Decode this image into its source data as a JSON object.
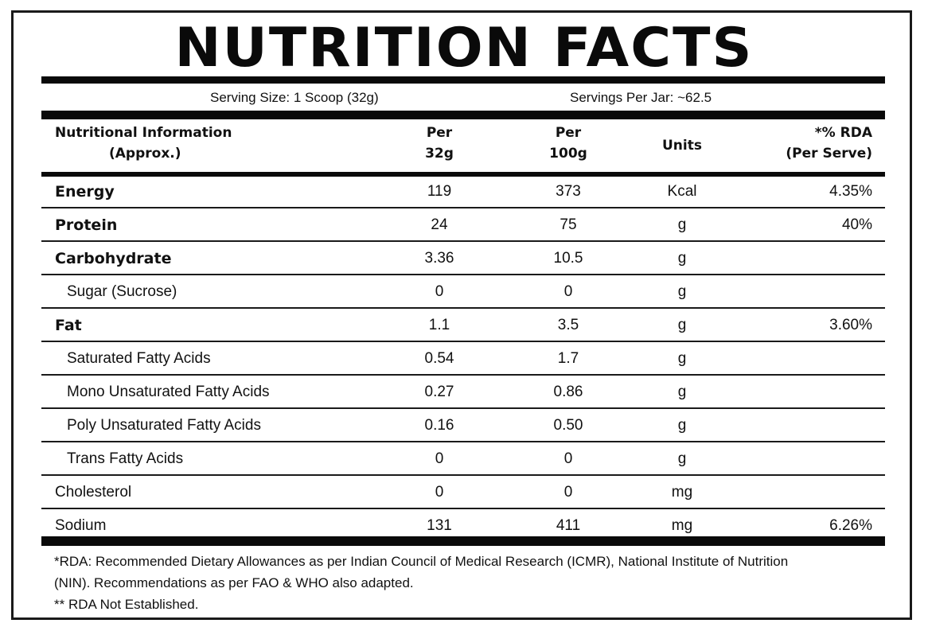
{
  "title": "NUTRITION FACTS",
  "serving": {
    "size": "Serving Size: 1 Scoop (32g)",
    "per_jar": "Servings Per Jar: ~62.5"
  },
  "header": {
    "info_line1": "Nutritional Information",
    "info_line2": "(Approx.)",
    "per32_line1": "Per",
    "per32_line2": "32g",
    "per100_line1": "Per",
    "per100_line2": "100g",
    "units": "Units",
    "rda_line1": "*% RDA",
    "rda_line2": "(Per Serve)"
  },
  "rows": [
    {
      "name": "Energy",
      "v32": "119",
      "v100": "373",
      "unit": "Kcal",
      "rda": "4.35%"
    },
    {
      "name": "Protein",
      "v32": "24",
      "v100": "75",
      "unit": "g",
      "rda": "40%"
    },
    {
      "name": "Carbohydrate",
      "v32": "3.36",
      "v100": "10.5",
      "unit": "g",
      "rda": ""
    },
    {
      "name": "Sugar (Sucrose)",
      "v32": "0",
      "v100": "0",
      "unit": "g",
      "rda": ""
    },
    {
      "name": "Fat",
      "v32": "1.1",
      "v100": "3.5",
      "unit": "g",
      "rda": "3.60%"
    },
    {
      "name": "Saturated Fatty Acids",
      "v32": "0.54",
      "v100": "1.7",
      "unit": "g",
      "rda": ""
    },
    {
      "name": "Mono Unsaturated Fatty Acids",
      "v32": "0.27",
      "v100": "0.86",
      "unit": "g",
      "rda": ""
    },
    {
      "name": "Poly Unsaturated Fatty Acids",
      "v32": "0.16",
      "v100": "0.50",
      "unit": "g",
      "rda": ""
    },
    {
      "name": "Trans Fatty Acids",
      "v32": "0",
      "v100": "0",
      "unit": "g",
      "rda": ""
    },
    {
      "name": "Cholesterol",
      "v32": "0",
      "v100": "0",
      "unit": "mg",
      "rda": ""
    },
    {
      "name": "Sodium",
      "v32": "131",
      "v100": "411",
      "unit": "mg",
      "rda": "6.26%"
    }
  ],
  "footnote": {
    "line1": "*RDA: Recommended Dietary Allowances as per Indian Council of Medical Research (ICMR), National Institute of Nutrition",
    "line2": "(NIN). Recommendations as per FAO & WHO also adapted.",
    "line3": "** RDA Not Established."
  }
}
